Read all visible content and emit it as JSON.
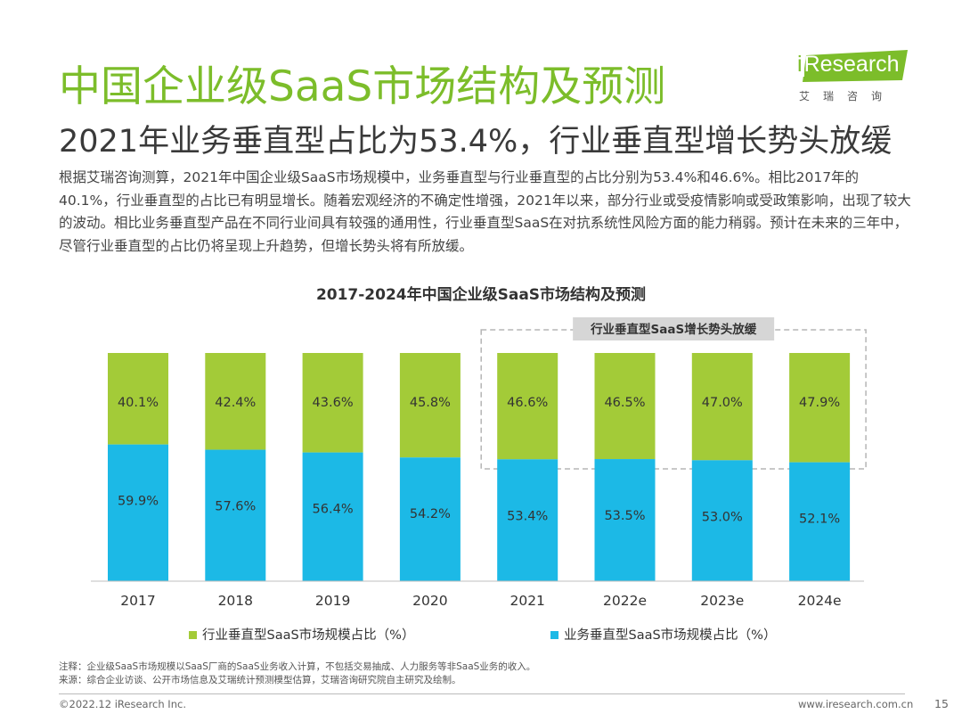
{
  "header": {
    "title": "中国企业级SaaS市场结构及预测",
    "subtitle": "2021年业务垂直型占比为53.4%，行业垂直型增长势头放缓",
    "logo_main": "Research",
    "logo_i": "i",
    "logo_sub": "艾瑞咨询"
  },
  "paragraph": "根据艾瑞咨询测算，2021年中国企业级SaaS市场规模中，业务垂直型与行业垂直型的占比分别为53.4%和46.6%。相比2017年的40.1%，行业垂直型的占比已有明显增长。随着宏观经济的不确定性增强，2021年以来，部分行业或受疫情影响或受政策影响，出现了较大的波动。相比业务垂直型产品在不同行业间具有较强的通用性，行业垂直型SaaS在对抗系统性风险方面的能力稍弱。预计在未来的三年中，尽管行业垂直型的占比仍将呈现上升趋势，但增长势头将有所放缓。",
  "notes": {
    "note1": "注释：企业级SaaS市场规模以SaaS厂商的SaaS业务收入计算，不包括交易抽成、人力服务等非SaaS业务的收入。",
    "note2": "来源：综合企业访谈、公开市场信息及艾瑞统计预测模型估算，艾瑞咨询研究院自主研究及绘制。"
  },
  "footer": {
    "copyright": "©2022.12 iResearch Inc.",
    "website": "www.iresearch.com.cn",
    "page": "15"
  },
  "colors": {
    "industry": "#a3cb38",
    "business": "#1cb9e6",
    "title_green": "#7cbd2a"
  },
  "chart_data": {
    "type": "bar",
    "stacked": true,
    "percent_stacked": true,
    "title": "2017-2024年中国企业级SaaS市场结构及预测",
    "annotation": "行业垂直型SaaS增长势头放缓",
    "annotation_covers": [
      "2021",
      "2022e",
      "2023e",
      "2024e"
    ],
    "categories": [
      "2017",
      "2018",
      "2019",
      "2020",
      "2021",
      "2022e",
      "2023e",
      "2024e"
    ],
    "series": [
      {
        "name": "业务垂直型SaaS市场规模占比（%）",
        "key": "business",
        "values": [
          59.9,
          57.6,
          56.4,
          54.2,
          53.4,
          53.5,
          53.0,
          52.1
        ],
        "labels": [
          "59.9%",
          "57.6%",
          "56.4%",
          "54.2%",
          "53.4%",
          "53.5%",
          "53.0%",
          "52.1%"
        ]
      },
      {
        "name": "行业垂直型SaaS市场规模占比（%）",
        "key": "industry",
        "values": [
          40.1,
          42.4,
          43.6,
          45.8,
          46.6,
          46.5,
          47.0,
          47.9
        ],
        "labels": [
          "40.1%",
          "42.4%",
          "43.6%",
          "45.8%",
          "46.6%",
          "46.5%",
          "47.0%",
          "47.9%"
        ]
      }
    ],
    "legend_position": "bottom",
    "ylim": [
      0,
      100
    ],
    "grid": false
  }
}
